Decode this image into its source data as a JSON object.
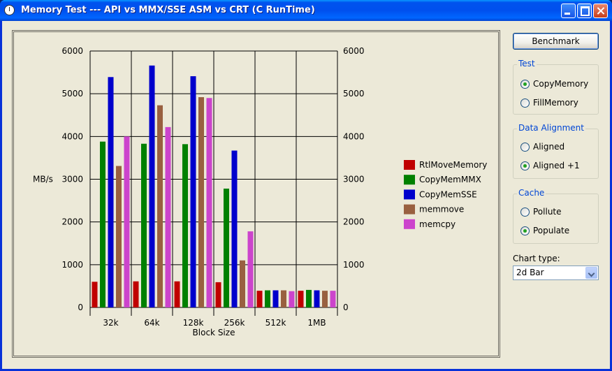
{
  "window": {
    "title": "Memory Test --- API vs MMX/SSE ASM vs CRT (C RunTime)"
  },
  "controls": {
    "benchmark_label": "Benchmark",
    "test": {
      "title": "Test",
      "options": [
        "CopyMemory",
        "FillMemory"
      ],
      "selected": 0
    },
    "alignment": {
      "title": "Data Alignment",
      "options": [
        "Aligned",
        "Aligned +1"
      ],
      "selected": 1
    },
    "cache": {
      "title": "Cache",
      "options": [
        "Pollute",
        "Populate"
      ],
      "selected": 1
    },
    "chart_type": {
      "label": "Chart type:",
      "value": "2d Bar"
    }
  },
  "chart_data": {
    "type": "bar",
    "categories": [
      "32k",
      "64k",
      "128k",
      "256k",
      "512k",
      "1MB"
    ],
    "xlabel": "Block Size",
    "ylabel": "MB/s",
    "ylim": [
      0,
      6000
    ],
    "yticks": [
      0,
      1000,
      2000,
      3000,
      4000,
      5000,
      6000
    ],
    "grid": true,
    "legend": "right",
    "series": [
      {
        "name": "RtlMoveMemory",
        "color": "#C00000",
        "values": [
          600,
          610,
          610,
          590,
          390,
          390
        ]
      },
      {
        "name": "CopyMemMMX",
        "color": "#008000",
        "values": [
          3880,
          3830,
          3820,
          2780,
          400,
          410
        ]
      },
      {
        "name": "CopyMemSSE",
        "color": "#0000CC",
        "values": [
          5390,
          5660,
          5410,
          3670,
          400,
          400
        ]
      },
      {
        "name": "memmove",
        "color": "#996040",
        "values": [
          3310,
          4730,
          4920,
          1100,
          400,
          390
        ]
      },
      {
        "name": "memcpy",
        "color": "#CC44CC",
        "values": [
          4000,
          4220,
          4900,
          1780,
          380,
          390
        ]
      }
    ]
  }
}
